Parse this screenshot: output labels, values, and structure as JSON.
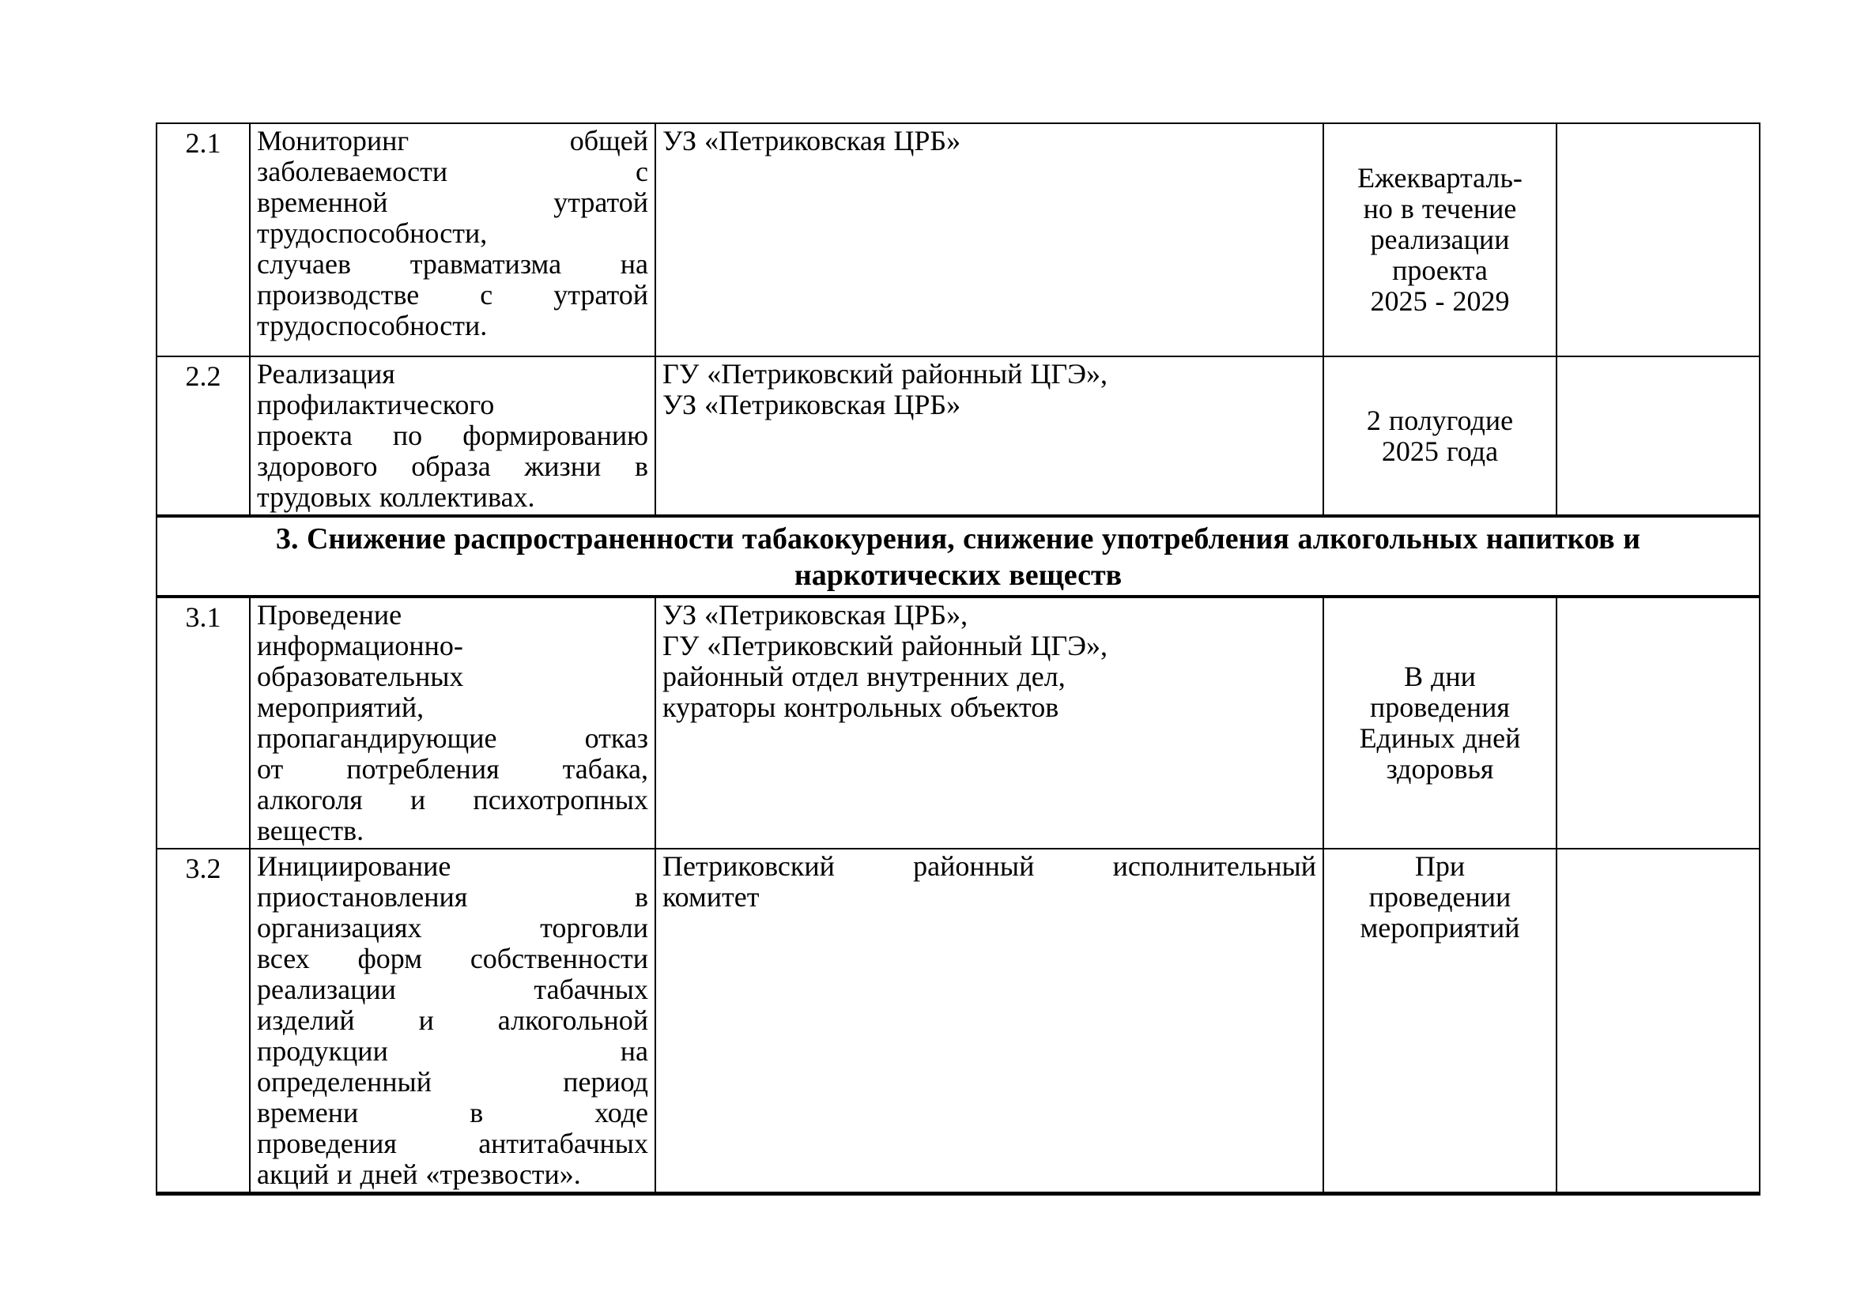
{
  "table": {
    "rows": [
      {
        "num": "2.1",
        "activity": "Мониторинг общей\nзаболеваемости с\nвременной утратой\nтрудоспособности,\nслучаев травматизма на\nпроизводстве с утратой\nтрудоспособности.",
        "executors": "УЗ «Петриковская ЦРБ»",
        "timing": "Ежекварталь-\nно в течение\nреализации\nпроекта\n2025 - 2029",
        "note": ""
      },
      {
        "num": "2.2",
        "activity": "Реализация\nпрофилактического\nпроекта по формированию\nздорового образа жизни в\nтрудовых коллективах.",
        "executors": "ГУ «Петриковский районный ЦГЭ»,\nУЗ «Петриковская ЦРБ»",
        "timing": "2 полугодие\n2025 года",
        "note": ""
      },
      {
        "section": "3. Снижение распространенности табакокурения, снижение употребления алкогольных напитков и\nнаркотических веществ"
      },
      {
        "num": "3.1",
        "activity": "Проведение\nинформационно-\nобразовательных\nмероприятий,\nпропагандирующие отказ\nот потребления табака,\nалкоголя и психотропных\nвеществ.",
        "executors": "УЗ «Петриковская ЦРБ»,\nГУ «Петриковский районный ЦГЭ»,\nрайонный отдел внутренних дел,\nкураторы контрольных объектов",
        "timing": "В дни\nпроведения\nЕдиных дней\nздоровья",
        "note": ""
      },
      {
        "num": "3.2",
        "activity": "Инициирование\nприостановления в\nорганизациях торговли\nвсех форм собственности\nреализации табачных\nизделий и алкогольной\nпродукции на\nопределенный период\nвремени в ходе\nпроведения антитабачных\nакций и дней «трезвости».",
        "executors": "Петриковский районный исполнительный\nкомитет",
        "timing": "При\nпроведении\nмероприятий",
        "note": ""
      }
    ]
  }
}
